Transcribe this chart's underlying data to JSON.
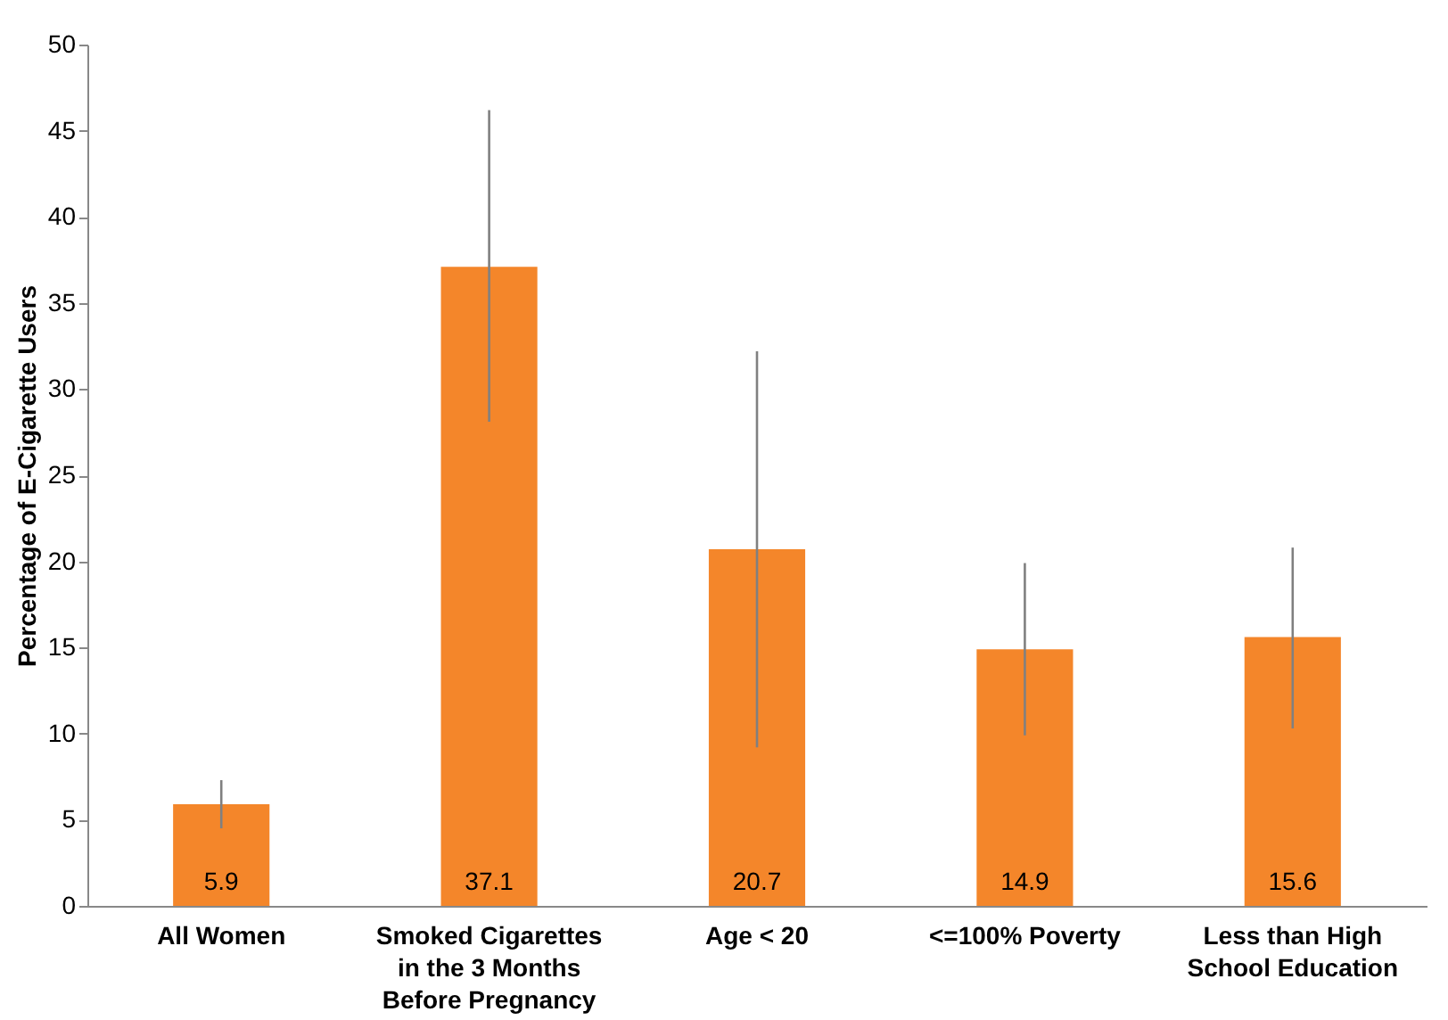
{
  "chart_data": {
    "type": "bar",
    "ylabel": "Percentage of E-Cigarette Users",
    "categories": [
      "All Women",
      "Smoked Cigarettes in the 3 Months Before Pregnancy",
      "Age < 20",
      "<=100% Poverty",
      "Less than High School Education"
    ],
    "values": [
      5.9,
      37.1,
      20.7,
      14.9,
      15.6
    ],
    "errors": [
      [
        4.5,
        7.3
      ],
      [
        28.1,
        46.2
      ],
      [
        9.2,
        32.2
      ],
      [
        9.9,
        19.9
      ],
      [
        10.3,
        20.8
      ]
    ],
    "color": "#f4862a",
    "ylim": [
      0,
      50
    ],
    "yticks": [
      0,
      5,
      10,
      15,
      20,
      25,
      30,
      35,
      40,
      45,
      50
    ],
    "grid": false,
    "data_labels": true
  }
}
